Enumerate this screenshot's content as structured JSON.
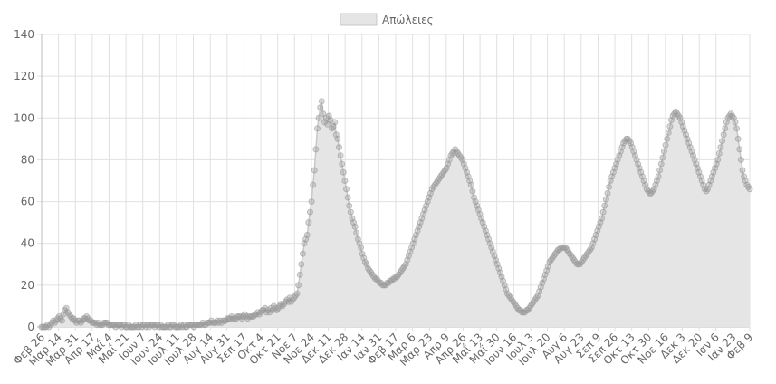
{
  "colors": {
    "fill": "#e5e5e5",
    "line": "#c8c8c8",
    "point": "#9a9a9a",
    "grid": "#e0e0e0",
    "axis": "#bdbdbd"
  },
  "chart_data": {
    "type": "area",
    "legend": {
      "label": "Απώλειες",
      "position": "top"
    },
    "grid": true,
    "ylim": [
      0,
      140
    ],
    "yticks": [
      0,
      20,
      40,
      60,
      80,
      100,
      120,
      140
    ],
    "xtick_labels": [
      "Φεβ 26",
      "Μαρ 14",
      "Μαρ 31",
      "Απρ 17",
      "Μαΐ 4",
      "Μαΐ 21",
      "Ιουν 7",
      "Ιουν 24",
      "Ιουλ 11",
      "Ιουλ 28",
      "Αυγ 14",
      "Αυγ 31",
      "Σεπ 17",
      "Οκτ 4",
      "Οκτ 21",
      "Νοε 7",
      "Νοε 24",
      "Δεκ 11",
      "Δεκ 28",
      "Ιαν 14",
      "Ιαν 31",
      "Φεβ 17",
      "Μαρ 6",
      "Μαρ 23",
      "Απρ 9",
      "Απρ 26",
      "Μαΐ 13",
      "Μαΐ 30",
      "Ιουν 16",
      "Ιουλ 3",
      "Ιουλ 20",
      "Αυγ 6",
      "Αυγ 23",
      "Σεπ 9",
      "Σεπ 26",
      "Οκτ 13",
      "Οκτ 30",
      "Νοε 16",
      "Δεκ 3",
      "Δεκ 20",
      "Ιαν 6",
      "Ιαν 23",
      "Φεβ 9"
    ],
    "series": [
      {
        "name": "Απώλειες",
        "values": [
          0,
          0,
          0,
          0,
          1,
          0,
          1,
          2,
          3,
          2,
          3,
          4,
          5,
          4,
          3,
          6,
          8,
          9,
          7,
          6,
          5,
          4,
          4,
          3,
          2,
          3,
          3,
          2,
          3,
          4,
          4,
          5,
          4,
          3,
          3,
          2,
          2,
          2,
          1,
          2,
          1,
          1,
          1,
          2,
          2,
          2,
          1,
          1,
          1,
          1,
          1,
          0,
          1,
          1,
          1,
          0,
          1,
          1,
          0,
          0,
          1,
          0,
          0,
          0,
          0,
          1,
          0,
          0,
          1,
          0,
          1,
          1,
          0,
          1,
          0,
          1,
          1,
          1,
          0,
          1,
          1,
          0,
          1,
          0,
          0,
          0,
          0,
          1,
          0,
          0,
          1,
          1,
          0,
          0,
          0,
          0,
          1,
          0,
          1,
          0,
          0,
          1,
          1,
          1,
          1,
          0,
          1,
          1,
          1,
          1,
          1,
          2,
          1,
          1,
          2,
          2,
          2,
          3,
          2,
          2,
          2,
          3,
          2,
          3,
          2,
          3,
          3,
          3,
          4,
          4,
          4,
          5,
          4,
          4,
          4,
          5,
          5,
          5,
          4,
          5,
          6,
          5,
          4,
          5,
          5,
          5,
          5,
          6,
          6,
          7,
          6,
          7,
          8,
          8,
          9,
          7,
          8,
          7,
          9,
          8,
          10,
          9,
          8,
          9,
          10,
          11,
          10,
          11,
          12,
          13,
          12,
          14,
          12,
          13,
          14,
          15,
          16,
          20,
          25,
          30,
          35,
          40,
          42,
          44,
          50,
          55,
          60,
          68,
          75,
          85,
          95,
          100,
          105,
          108,
          102,
          98,
          100,
          97,
          101,
          99,
          95,
          96,
          98,
          92,
          90,
          86,
          82,
          78,
          74,
          70,
          66,
          62,
          58,
          55,
          52,
          50,
          48,
          45,
          42,
          40,
          38,
          35,
          33,
          31,
          30,
          28,
          27,
          26,
          25,
          24,
          23,
          23,
          22,
          21,
          21,
          20,
          20,
          20,
          21,
          21,
          22,
          22,
          23,
          23,
          24,
          24,
          25,
          26,
          27,
          28,
          29,
          30,
          32,
          34,
          36,
          38,
          40,
          42,
          44,
          46,
          48,
          50,
          52,
          54,
          56,
          58,
          60,
          62,
          64,
          66,
          67,
          68,
          69,
          70,
          71,
          72,
          73,
          74,
          75,
          76,
          78,
          80,
          82,
          83,
          84,
          85,
          84,
          83,
          82,
          81,
          80,
          78,
          76,
          74,
          72,
          70,
          68,
          65,
          62,
          60,
          58,
          56,
          54,
          52,
          50,
          48,
          46,
          44,
          42,
          40,
          38,
          36,
          34,
          32,
          30,
          28,
          26,
          24,
          22,
          20,
          18,
          16,
          15,
          14,
          13,
          12,
          11,
          10,
          9,
          8,
          8,
          7,
          7,
          7,
          8,
          8,
          9,
          10,
          11,
          12,
          13,
          14,
          15,
          17,
          19,
          21,
          23,
          25,
          27,
          29,
          31,
          32,
          33,
          34,
          35,
          36,
          37,
          37,
          38,
          38,
          38,
          38,
          37,
          36,
          35,
          34,
          33,
          32,
          31,
          30,
          30,
          30,
          31,
          32,
          33,
          34,
          35,
          36,
          37,
          38,
          40,
          42,
          44,
          46,
          48,
          50,
          52,
          55,
          58,
          61,
          64,
          67,
          70,
          72,
          74,
          76,
          78,
          80,
          82,
          84,
          86,
          88,
          89,
          90,
          90,
          89,
          88,
          86,
          84,
          82,
          80,
          78,
          76,
          74,
          72,
          70,
          68,
          66,
          65,
          64,
          64,
          65,
          66,
          68,
          70,
          72,
          75,
          78,
          81,
          84,
          87,
          90,
          93,
          96,
          99,
          101,
          102,
          103,
          102,
          101,
          100,
          98,
          96,
          94,
          92,
          90,
          88,
          86,
          84,
          82,
          80,
          78,
          76,
          74,
          72,
          70,
          68,
          66,
          65,
          66,
          68,
          70,
          72,
          74,
          76,
          78,
          80,
          83,
          86,
          89,
          92,
          95,
          98,
          100,
          101,
          102,
          101,
          100,
          98,
          95,
          90,
          85,
          80,
          75,
          72,
          70,
          68,
          67,
          66
        ]
      }
    ]
  }
}
